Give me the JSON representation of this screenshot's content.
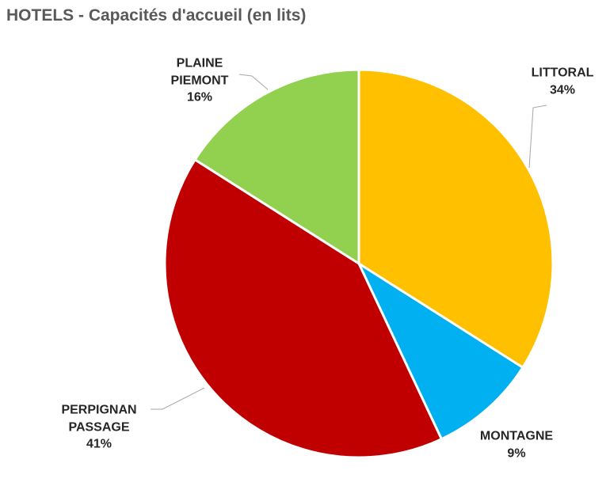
{
  "chart_data": {
    "type": "pie",
    "title": "HOTELS - Capacités d'accueil (en lits)",
    "categories": [
      "LITTORAL",
      "MONTAGNE",
      "PERPIGNAN PASSAGE",
      "PLAINE PIEMONT"
    ],
    "values": [
      34,
      9,
      41,
      16
    ],
    "value_labels": [
      "34%",
      "9%",
      "41%",
      "16%"
    ],
    "colors": [
      "#ffc000",
      "#00b0f0",
      "#c00000",
      "#92d050"
    ]
  }
}
